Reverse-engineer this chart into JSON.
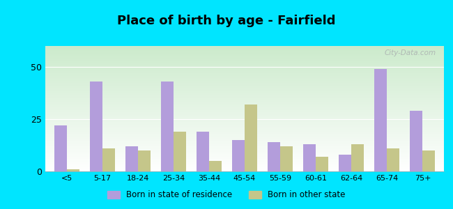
{
  "title": "Place of birth by age - Fairfield",
  "categories": [
    "<5",
    "5-17",
    "18-24",
    "25-34",
    "35-44",
    "45-54",
    "55-59",
    "60-61",
    "62-64",
    "65-74",
    "75+"
  ],
  "state_residence": [
    22,
    43,
    12,
    43,
    19,
    15,
    14,
    13,
    8,
    49,
    29
  ],
  "other_state": [
    1,
    11,
    10,
    19,
    5,
    32,
    12,
    7,
    13,
    11,
    10
  ],
  "bar_color_residence": "#b39ddb",
  "bar_color_other": "#c5c68a",
  "bg_color_outer": "#00e5ff",
  "ylim": [
    0,
    60
  ],
  "yticks": [
    0,
    25,
    50
  ],
  "legend_residence": "Born in state of residence",
  "legend_other": "Born in other state",
  "title_fontsize": 13,
  "watermark": "City-Data.com"
}
